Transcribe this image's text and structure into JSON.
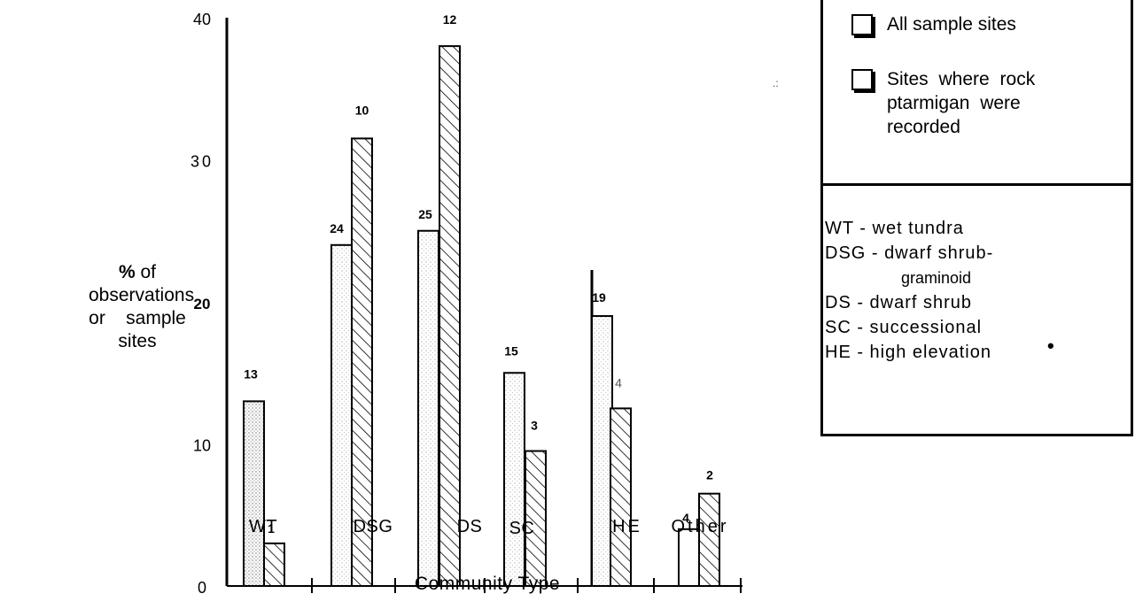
{
  "chart_data": {
    "type": "bar",
    "categories": [
      "WT",
      "DSG",
      "DS",
      "SC",
      "HE",
      "Other"
    ],
    "ylabel": "% of observations or sample sites",
    "xlabel": "Community Type",
    "ylim": [
      0,
      40
    ],
    "yticks": [
      "0",
      "10",
      "20",
      "30",
      "40"
    ],
    "series": [
      {
        "name": "All sample sites",
        "values": [
          13,
          24,
          25,
          15,
          19,
          4
        ],
        "pattern": "stippled",
        "bar_labels": [
          "13",
          "24",
          "25",
          "15",
          "19",
          "4"
        ]
      },
      {
        "name": "Sites where rock ptarmigan were recorded",
        "values": [
          3,
          31.5,
          38,
          9.5,
          12.5,
          6.5
        ],
        "pattern": "hatched",
        "bar_labels": [
          "1",
          "10",
          "12",
          "3",
          "4",
          "2"
        ]
      }
    ],
    "x_tick_labels": [
      "WT",
      "DSG",
      "DS",
      "SC",
      "HE",
      "Other"
    ],
    "grid": false,
    "legend_position": "top-right"
  },
  "legend": {
    "all_sites": "All sample sites",
    "ptarmigan_sites": "Sites where rock ptarmigan were recorded"
  },
  "abbreviations": [
    {
      "text": "WT  -  wet tundra"
    },
    {
      "text": "DSG - dwarf shrub-"
    },
    {
      "text": "graminoid"
    },
    {
      "text": "DS - dwarf shrub"
    },
    {
      "text": "SC - successional"
    },
    {
      "text": "HE - high elevation"
    }
  ],
  "ylabel_lines": {
    "pct": "%",
    "of": " of",
    "line2": "observations",
    "line3": "or    sample",
    "line4": "sites"
  }
}
